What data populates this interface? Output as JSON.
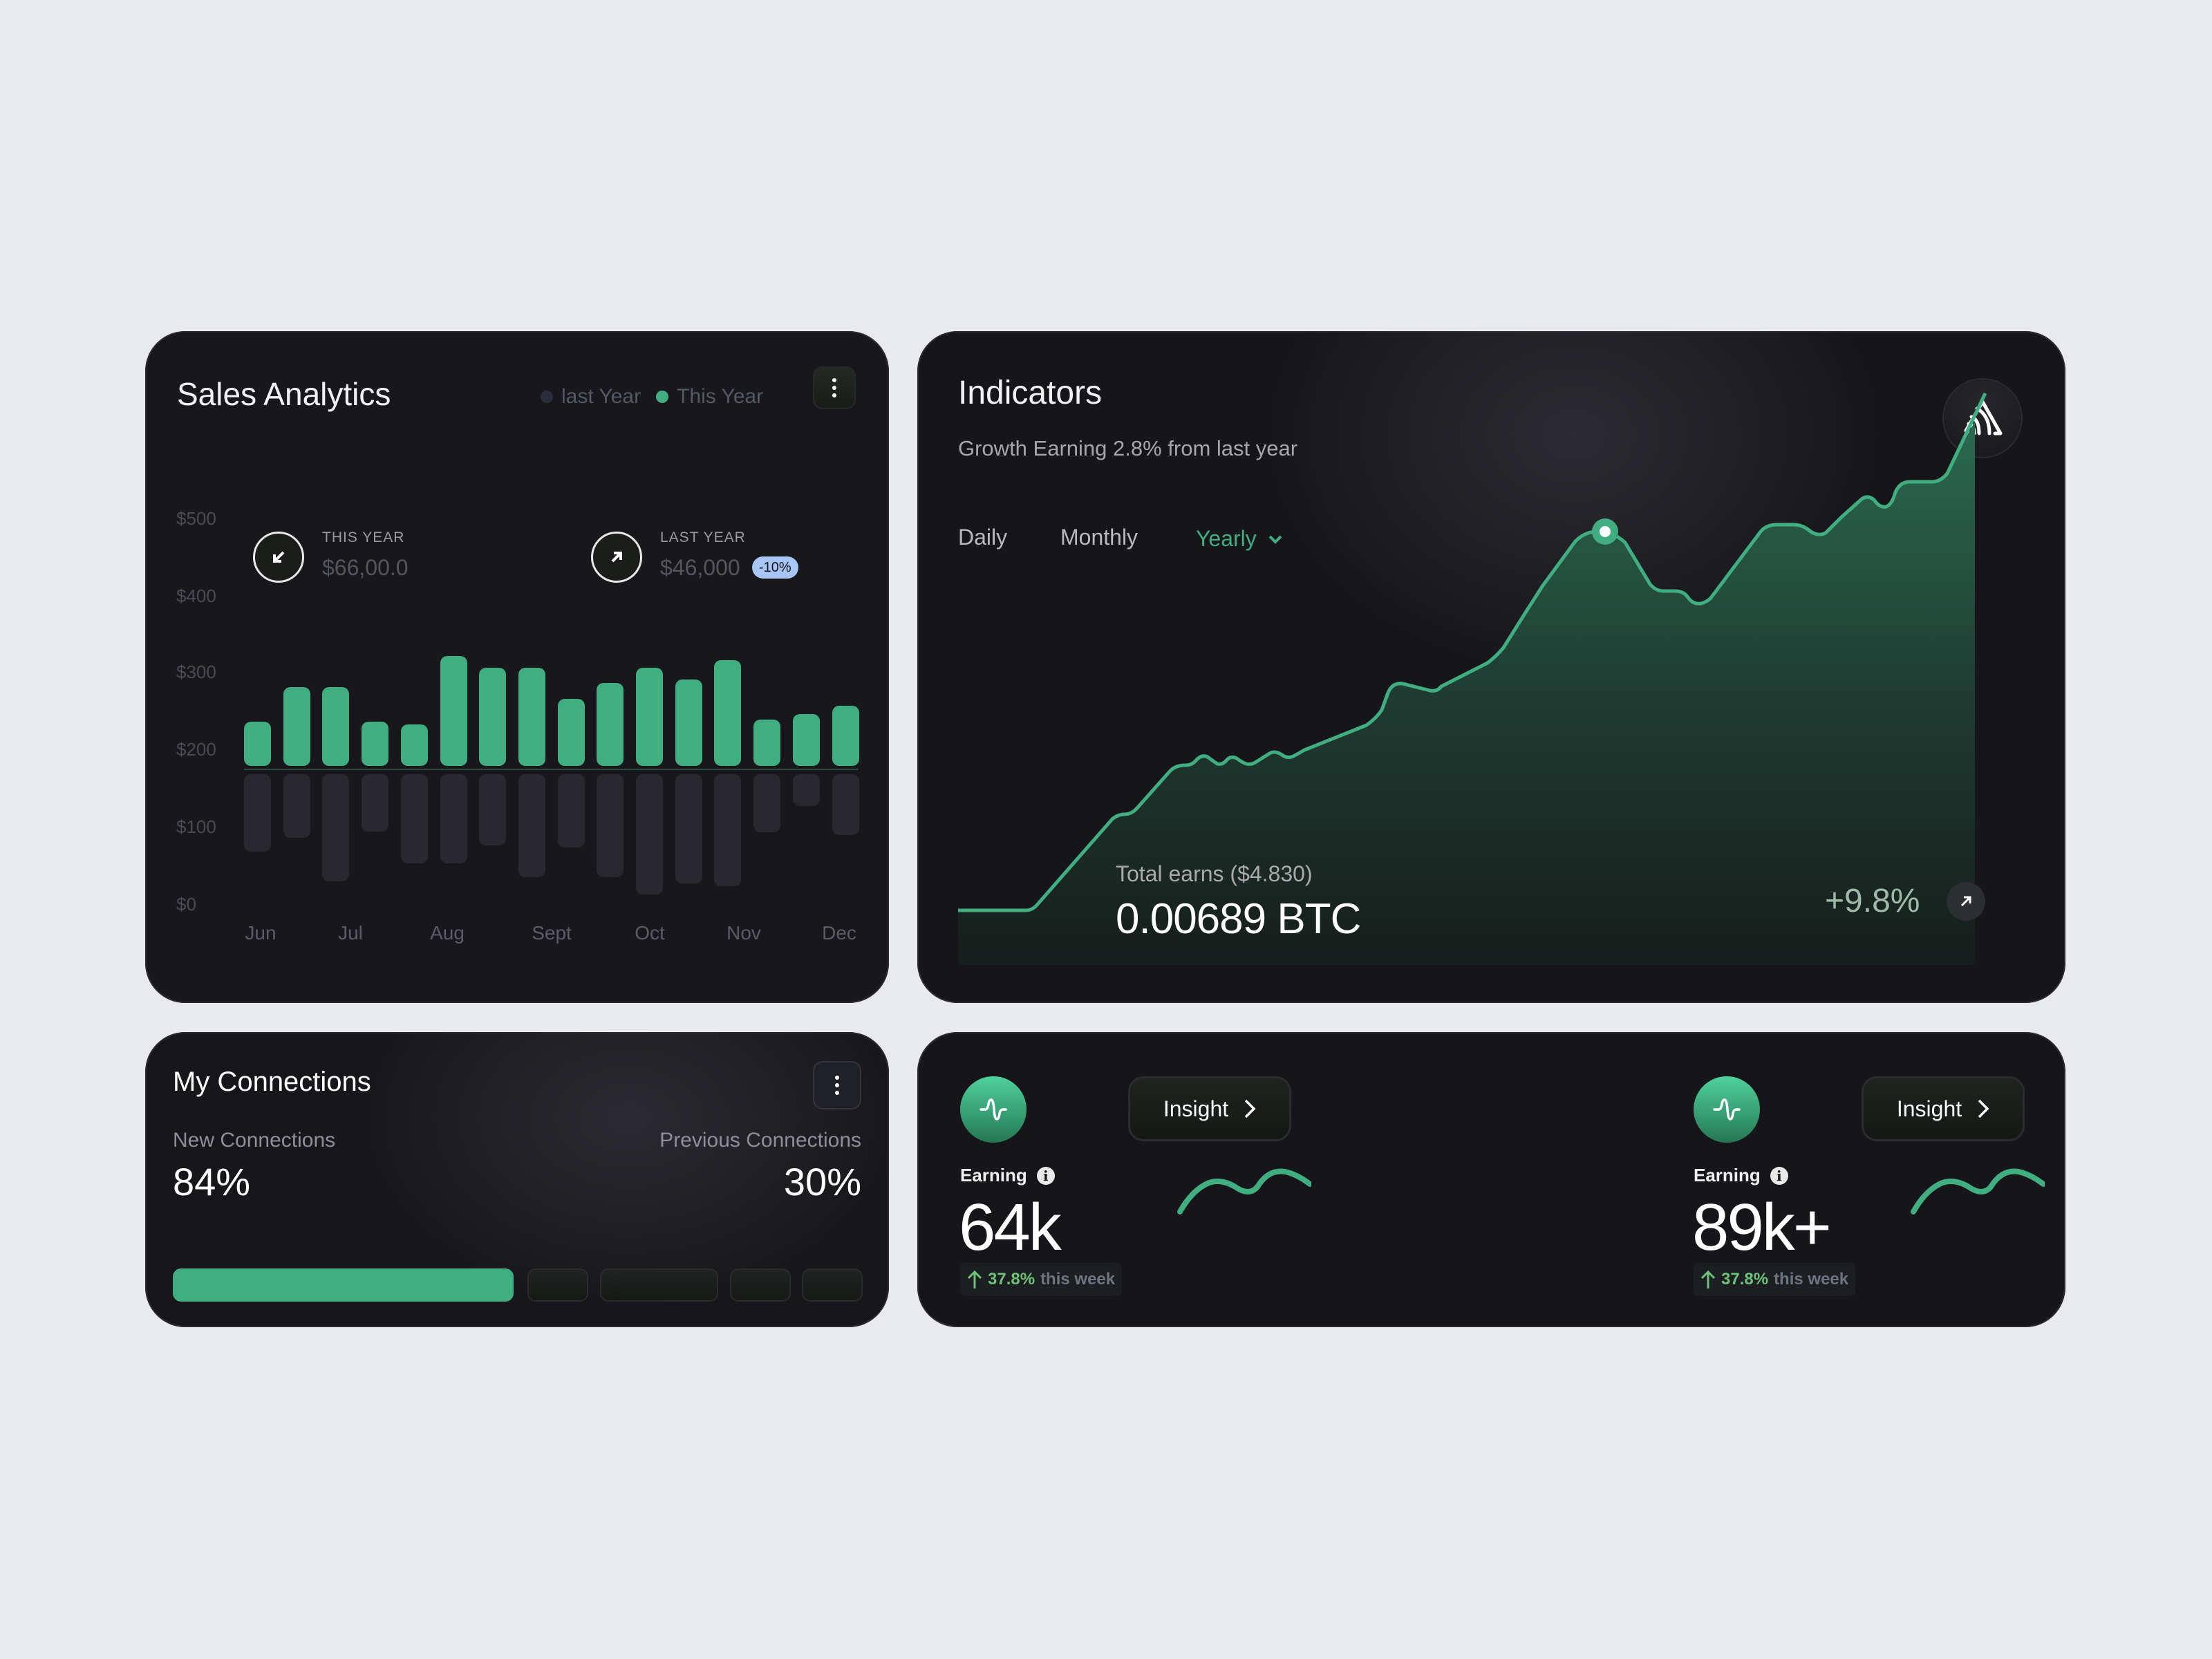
{
  "sales": {
    "title": "Sales Analytics",
    "legend": [
      {
        "label": "last Year",
        "color": "#2b2d3a"
      },
      {
        "label": "This Year",
        "color": "#41ae82"
      }
    ],
    "menu_icon": "more-vertical-icon",
    "this_year": {
      "label": "THIS YEAR",
      "value": "$66,00.0",
      "icon": "arrow-down-left-icon"
    },
    "last_year": {
      "label": "LAST YEAR",
      "value": "$46,000",
      "badge": "-10%",
      "icon": "arrow-up-right-icon"
    },
    "y_ticks": [
      "$500",
      "$400",
      "$300",
      "$200",
      "$100",
      "$0"
    ],
    "x_ticks": [
      "Jun",
      "Jul",
      "Aug",
      "Sept",
      "Oct",
      "Nov",
      "Dec"
    ]
  },
  "indicators": {
    "title": "Indicators",
    "subtitle": "Growth Earning 2.8% from last year",
    "logo_icon": "sentry-logo-icon",
    "tabs": [
      {
        "label": "Daily",
        "active": false
      },
      {
        "label": "Monthly",
        "active": false
      },
      {
        "label": "Yearly",
        "active": true
      }
    ],
    "total_label": "Total earns ($4.830)",
    "total_value": "0.00689 BTC",
    "change": "+9.8%",
    "change_icon": "arrow-up-right-icon"
  },
  "connections": {
    "title": "My Connections",
    "new_label": "New Connections",
    "new_value": "84%",
    "prev_label": "Previous Connections",
    "prev_value": "30%",
    "menu_icon": "more-vertical-icon"
  },
  "earnings": [
    {
      "label": "Earning",
      "value": "64k",
      "change": "37.8%",
      "period": "this week",
      "button": "Insight"
    },
    {
      "label": "Earning",
      "value": "89k+",
      "change": "37.8%",
      "period": "this week",
      "button": "Insight"
    }
  ],
  "colors": {
    "accent": "#41ae82",
    "badge": "#a8c6f5",
    "card": "#16161a",
    "background": "#e9eaee"
  },
  "chart_data": [
    {
      "type": "bar",
      "title": "Sales Analytics",
      "categories": [
        "Jun",
        "",
        "Jul",
        "",
        "Aug",
        "",
        "",
        "Sept",
        "",
        "Oct",
        "",
        "Nov",
        "",
        "",
        "",
        "Dec"
      ],
      "x_tick_labels": [
        "Jun",
        "Jul",
        "Aug",
        "Sept",
        "Oct",
        "Nov",
        "Dec"
      ],
      "series": [
        {
          "name": "This Year",
          "color": "#41ae82",
          "values": [
            235,
            280,
            280,
            235,
            232,
            320,
            305,
            305,
            265,
            285,
            305,
            290,
            315,
            238,
            245,
            256
          ]
        },
        {
          "name": "last Year",
          "color": "#28282e",
          "values": [
            100,
            82,
            138,
            74,
            115,
            115,
            92,
            133,
            95,
            133,
            155,
            141,
            145,
            75,
            41,
            79
          ]
        }
      ],
      "ylabel": "",
      "xlabel": "",
      "y_ticks": [
        "$0",
        "$100",
        "$200",
        "$300",
        "$400",
        "$500"
      ],
      "ylim": [
        0,
        500
      ],
      "legend_position": "top-right",
      "annotations": [
        {
          "label": "THIS YEAR",
          "value": "$66,00.0"
        },
        {
          "label": "LAST YEAR",
          "value": "$46,000",
          "badge": "-10%"
        }
      ]
    },
    {
      "type": "area",
      "title": "Indicators",
      "subtitle": "Growth Earning 2.8% from last year",
      "x": [
        0,
        1,
        2,
        3,
        4,
        5,
        6,
        7,
        8,
        9,
        10,
        11,
        12,
        13,
        14,
        15,
        16,
        17,
        18,
        19,
        20,
        21,
        22,
        23,
        24,
        25,
        26,
        27,
        28,
        29,
        30
      ],
      "values": [
        0,
        0,
        5,
        22,
        30,
        34,
        36,
        35,
        36,
        35,
        37,
        39,
        43,
        50,
        55,
        58,
        68,
        72,
        75,
        72,
        68,
        66,
        70,
        72,
        72,
        75,
        78,
        80,
        81,
        82,
        95
      ],
      "highlight_point": {
        "x": 17,
        "value": 72
      },
      "grid": false,
      "total_label": "Total earns ($4.830)",
      "total_value": "0.00689 BTC",
      "change": "+9.8%"
    },
    {
      "type": "line",
      "title": "Earning sparkline 64k",
      "values": [
        0,
        6,
        9,
        8,
        5,
        7,
        12,
        14,
        12,
        9
      ]
    },
    {
      "type": "line",
      "title": "Earning sparkline 89k+",
      "values": [
        0,
        6,
        9,
        8,
        5,
        7,
        12,
        14,
        12,
        9
      ]
    }
  ]
}
